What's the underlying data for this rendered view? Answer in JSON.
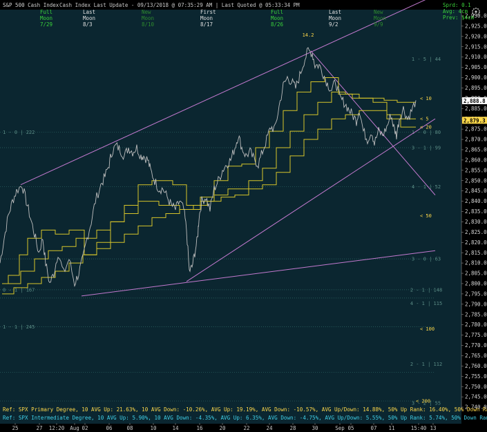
{
  "header": {
    "title": "S&P 500 Cash Index",
    "mid": "Cash Index  Last Update - 09/13/2018 @ 07:35:29 AM | Last Quoted @ 05:33:34 PM",
    "right": [
      {
        "text": "Sprd: 0.1",
        "color": "#3ad23a"
      },
      {
        "text": "Avg: 4cm",
        "color": "#3ad23a"
      },
      {
        "text": "Prev: $4cm",
        "color": "#3ad23a"
      }
    ],
    "moon_phases": [
      {
        "col": "Full",
        "row2": "Moon",
        "date": "7/29",
        "color": "#3ad23a"
      },
      {
        "col": "Last",
        "row2": "Moon",
        "date": "8/3",
        "color": "#e0e0e0"
      },
      {
        "col": "New",
        "row2": "Moon",
        "date": "8/10",
        "color": "#2e8a2e"
      },
      {
        "col": "First",
        "row2": "Moon",
        "date": "8/17",
        "color": "#e0e0e0"
      },
      {
        "col": "Full",
        "row2": "Moon",
        "date": "8/26",
        "color": "#3ad23a"
      },
      {
        "col": "Last",
        "row2": "Moon",
        "date": "9/2",
        "color": "#e0e0e0"
      },
      {
        "col": "New",
        "row2": "Moon",
        "date": "9/9",
        "color": "#2e8a2e"
      }
    ]
  },
  "chart_data": {
    "type": "line",
    "ylim": [
      2738,
      2933
    ],
    "yticks": [
      2740,
      2745,
      2750,
      2755,
      2760,
      2765,
      2770,
      2775,
      2780,
      2785,
      2790,
      2795,
      2800,
      2805,
      2810,
      2815,
      2820,
      2825,
      2830,
      2835,
      2840,
      2845,
      2850,
      2855,
      2860,
      2865,
      2870,
      2875,
      2880,
      2885,
      2890,
      2895,
      2900,
      2905,
      2910,
      2915,
      2920,
      2925,
      2930
    ],
    "xlim": [
      0,
      630
    ],
    "xticks": [
      {
        "x": 22,
        "label": "25"
      },
      {
        "x": 57,
        "label": "27"
      },
      {
        "x": 82,
        "label": "12:20"
      },
      {
        "x": 108,
        "label": "Aug"
      },
      {
        "x": 123,
        "label": "02"
      },
      {
        "x": 158,
        "label": "06"
      },
      {
        "x": 188,
        "label": "08"
      },
      {
        "x": 222,
        "label": "10"
      },
      {
        "x": 254,
        "label": "14"
      },
      {
        "x": 289,
        "label": "16"
      },
      {
        "x": 322,
        "label": "20"
      },
      {
        "x": 357,
        "label": "22"
      },
      {
        "x": 390,
        "label": "24"
      },
      {
        "x": 424,
        "label": "28"
      },
      {
        "x": 456,
        "label": "30"
      },
      {
        "x": 492,
        "label": "Sep"
      },
      {
        "x": 508,
        "label": "05"
      },
      {
        "x": 541,
        "label": "07"
      },
      {
        "x": 567,
        "label": "11"
      },
      {
        "x": 606,
        "label": "15:40"
      },
      {
        "x": 627,
        "label": "13"
      }
    ],
    "price_path": [
      [
        0,
        2810
      ],
      [
        6,
        2822
      ],
      [
        12,
        2833
      ],
      [
        18,
        2840
      ],
      [
        24,
        2845
      ],
      [
        32,
        2848
      ],
      [
        38,
        2840
      ],
      [
        44,
        2832
      ],
      [
        50,
        2824
      ],
      [
        56,
        2815
      ],
      [
        62,
        2822
      ],
      [
        66,
        2810
      ],
      [
        72,
        2800
      ],
      [
        78,
        2805
      ],
      [
        84,
        2815
      ],
      [
        92,
        2805
      ],
      [
        100,
        2812
      ],
      [
        108,
        2800
      ],
      [
        114,
        2805
      ],
      [
        120,
        2812
      ],
      [
        126,
        2822
      ],
      [
        132,
        2830
      ],
      [
        138,
        2840
      ],
      [
        146,
        2848
      ],
      [
        152,
        2852
      ],
      [
        158,
        2858
      ],
      [
        162,
        2864
      ],
      [
        168,
        2867
      ],
      [
        174,
        2865
      ],
      [
        180,
        2862
      ],
      [
        186,
        2866
      ],
      [
        192,
        2864
      ],
      [
        198,
        2866
      ],
      [
        204,
        2862
      ],
      [
        208,
        2862
      ],
      [
        214,
        2860
      ],
      [
        218,
        2855
      ],
      [
        224,
        2850
      ],
      [
        230,
        2846
      ],
      [
        236,
        2846
      ],
      [
        242,
        2842
      ],
      [
        248,
        2838
      ],
      [
        254,
        2836
      ],
      [
        260,
        2840
      ],
      [
        266,
        2836
      ],
      [
        270,
        2826
      ],
      [
        274,
        2806
      ],
      [
        278,
        2808
      ],
      [
        282,
        2815
      ],
      [
        286,
        2822
      ],
      [
        288,
        2832
      ],
      [
        292,
        2840
      ],
      [
        298,
        2842
      ],
      [
        304,
        2836
      ],
      [
        310,
        2846
      ],
      [
        316,
        2850
      ],
      [
        322,
        2855
      ],
      [
        328,
        2858
      ],
      [
        334,
        2860
      ],
      [
        340,
        2866
      ],
      [
        345,
        2872
      ],
      [
        350,
        2866
      ],
      [
        356,
        2862
      ],
      [
        362,
        2864
      ],
      [
        368,
        2860
      ],
      [
        374,
        2858
      ],
      [
        380,
        2864
      ],
      [
        386,
        2870
      ],
      [
        392,
        2876
      ],
      [
        398,
        2875
      ],
      [
        404,
        2886
      ],
      [
        410,
        2896
      ],
      [
        416,
        2900
      ],
      [
        422,
        2898
      ],
      [
        428,
        2895
      ],
      [
        434,
        2901
      ],
      [
        440,
        2908
      ],
      [
        446,
        2913
      ],
      [
        452,
        2912
      ],
      [
        456,
        2906
      ],
      [
        462,
        2906
      ],
      [
        468,
        2902
      ],
      [
        474,
        2897
      ],
      [
        480,
        2894
      ],
      [
        486,
        2898
      ],
      [
        492,
        2890
      ],
      [
        498,
        2888
      ],
      [
        504,
        2885
      ],
      [
        510,
        2882
      ],
      [
        516,
        2879
      ],
      [
        520,
        2885
      ],
      [
        526,
        2874
      ],
      [
        532,
        2870
      ],
      [
        538,
        2874
      ],
      [
        542,
        2868
      ],
      [
        548,
        2874
      ],
      [
        554,
        2872
      ],
      [
        560,
        2876
      ],
      [
        566,
        2882
      ],
      [
        570,
        2876
      ],
      [
        574,
        2872
      ],
      [
        578,
        2880
      ],
      [
        584,
        2885
      ],
      [
        590,
        2880
      ],
      [
        596,
        2884
      ],
      [
        602,
        2889
      ]
    ],
    "ma_lines": [
      [
        [
          3,
          2800
        ],
        [
          12,
          2800
        ],
        [
          12,
          2804
        ],
        [
          28,
          2804
        ],
        [
          28,
          2814
        ],
        [
          40,
          2814
        ],
        [
          40,
          2822
        ],
        [
          60,
          2822
        ],
        [
          60,
          2826
        ],
        [
          80,
          2826
        ],
        [
          80,
          2824
        ],
        [
          100,
          2824
        ],
        [
          100,
          2826
        ],
        [
          122,
          2826
        ],
        [
          122,
          2814
        ],
        [
          140,
          2814
        ],
        [
          140,
          2820
        ],
        [
          160,
          2820
        ],
        [
          160,
          2830
        ],
        [
          180,
          2830
        ],
        [
          180,
          2838
        ],
        [
          200,
          2838
        ],
        [
          200,
          2848
        ],
        [
          220,
          2848
        ],
        [
          220,
          2850
        ],
        [
          250,
          2850
        ],
        [
          250,
          2848
        ],
        [
          270,
          2848
        ],
        [
          270,
          2838
        ],
        [
          290,
          2838
        ],
        [
          290,
          2842
        ],
        [
          310,
          2842
        ],
        [
          310,
          2850
        ],
        [
          330,
          2850
        ],
        [
          330,
          2857
        ],
        [
          350,
          2857
        ],
        [
          350,
          2858
        ],
        [
          370,
          2858
        ],
        [
          370,
          2866
        ],
        [
          390,
          2866
        ],
        [
          390,
          2874
        ],
        [
          410,
          2874
        ],
        [
          410,
          2884
        ],
        [
          430,
          2884
        ],
        [
          430,
          2893
        ],
        [
          450,
          2893
        ],
        [
          450,
          2898
        ],
        [
          470,
          2898
        ],
        [
          470,
          2900
        ],
        [
          490,
          2900
        ],
        [
          490,
          2892
        ],
        [
          510,
          2892
        ],
        [
          510,
          2890
        ],
        [
          530,
          2890
        ],
        [
          530,
          2890
        ],
        [
          556,
          2890
        ],
        [
          556,
          2889
        ],
        [
          575,
          2889
        ],
        [
          575,
          2888
        ],
        [
          602,
          2888
        ]
      ],
      [
        [
          3,
          2800
        ],
        [
          30,
          2800
        ],
        [
          30,
          2806
        ],
        [
          50,
          2806
        ],
        [
          50,
          2812
        ],
        [
          70,
          2812
        ],
        [
          70,
          2816
        ],
        [
          90,
          2816
        ],
        [
          90,
          2818
        ],
        [
          110,
          2818
        ],
        [
          110,
          2822
        ],
        [
          140,
          2822
        ],
        [
          140,
          2826
        ],
        [
          160,
          2826
        ],
        [
          160,
          2830
        ],
        [
          180,
          2830
        ],
        [
          180,
          2834
        ],
        [
          200,
          2834
        ],
        [
          200,
          2840
        ],
        [
          230,
          2840
        ],
        [
          230,
          2838
        ],
        [
          260,
          2838
        ],
        [
          260,
          2836
        ],
        [
          290,
          2836
        ],
        [
          290,
          2840
        ],
        [
          310,
          2840
        ],
        [
          310,
          2843
        ],
        [
          330,
          2843
        ],
        [
          330,
          2846
        ],
        [
          360,
          2846
        ],
        [
          360,
          2850
        ],
        [
          380,
          2850
        ],
        [
          380,
          2856
        ],
        [
          400,
          2856
        ],
        [
          400,
          2866
        ],
        [
          420,
          2866
        ],
        [
          420,
          2874
        ],
        [
          440,
          2874
        ],
        [
          440,
          2882
        ],
        [
          460,
          2882
        ],
        [
          460,
          2888
        ],
        [
          480,
          2888
        ],
        [
          480,
          2893
        ],
        [
          500,
          2893
        ],
        [
          500,
          2892
        ],
        [
          520,
          2892
        ],
        [
          520,
          2890
        ],
        [
          540,
          2890
        ],
        [
          540,
          2888
        ],
        [
          560,
          2888
        ],
        [
          560,
          2882
        ],
        [
          580,
          2882
        ],
        [
          580,
          2880
        ],
        [
          602,
          2880
        ]
      ],
      [
        [
          3,
          2795
        ],
        [
          20,
          2795
        ],
        [
          20,
          2798
        ],
        [
          40,
          2798
        ],
        [
          40,
          2800
        ],
        [
          60,
          2800
        ],
        [
          60,
          2803
        ],
        [
          80,
          2803
        ],
        [
          80,
          2806
        ],
        [
          100,
          2806
        ],
        [
          100,
          2810
        ],
        [
          120,
          2810
        ],
        [
          120,
          2814
        ],
        [
          140,
          2814
        ],
        [
          140,
          2817
        ],
        [
          160,
          2817
        ],
        [
          160,
          2820
        ],
        [
          180,
          2820
        ],
        [
          180,
          2824
        ],
        [
          200,
          2824
        ],
        [
          200,
          2828
        ],
        [
          220,
          2828
        ],
        [
          220,
          2832
        ],
        [
          240,
          2832
        ],
        [
          240,
          2834
        ],
        [
          260,
          2834
        ],
        [
          260,
          2836
        ],
        [
          280,
          2836
        ],
        [
          280,
          2838
        ],
        [
          300,
          2838
        ],
        [
          300,
          2840
        ],
        [
          320,
          2840
        ],
        [
          320,
          2842
        ],
        [
          340,
          2842
        ],
        [
          340,
          2843
        ],
        [
          360,
          2843
        ],
        [
          360,
          2846
        ],
        [
          380,
          2846
        ],
        [
          380,
          2848
        ],
        [
          400,
          2848
        ],
        [
          400,
          2854
        ],
        [
          420,
          2854
        ],
        [
          420,
          2862
        ],
        [
          440,
          2862
        ],
        [
          440,
          2870
        ],
        [
          460,
          2870
        ],
        [
          460,
          2875
        ],
        [
          480,
          2875
        ],
        [
          480,
          2880
        ],
        [
          500,
          2880
        ],
        [
          500,
          2882
        ],
        [
          520,
          2882
        ],
        [
          520,
          2884
        ],
        [
          540,
          2884
        ],
        [
          540,
          2884
        ],
        [
          560,
          2884
        ],
        [
          560,
          2880
        ],
        [
          580,
          2880
        ],
        [
          580,
          2876
        ],
        [
          602,
          2876
        ]
      ]
    ],
    "trend_lines": [
      [
        [
          30,
          2848
        ],
        [
          630,
          2940
        ]
      ],
      [
        [
          450,
          2913
        ],
        [
          630,
          2843
        ]
      ],
      [
        [
          270,
          2801
        ],
        [
          630,
          2880
        ]
      ],
      [
        [
          118,
          2794
        ],
        [
          630,
          2816
        ]
      ]
    ],
    "level_lines": [
      2873.5,
      2866,
      2847,
      2812,
      2797,
      2793,
      2779,
      2757,
      2743
    ],
    "level_labels": [
      {
        "x": 617,
        "y": 2909,
        "text": "1 - 5 | 44"
      },
      {
        "x": 4,
        "y": 2873.5,
        "text": "1 - 0 | 222"
      },
      {
        "x": 617,
        "y": 2873.5,
        "text": "1 - 0 | 80"
      },
      {
        "x": 617,
        "y": 2866,
        "text": "3 - 1 | 99"
      },
      {
        "x": 617,
        "y": 2847,
        "text": "4 - 1 | 52"
      },
      {
        "x": 617,
        "y": 2812,
        "text": "3 - 0 | 63"
      },
      {
        "x": 4,
        "y": 2797,
        "text": "0 - 1 | 167"
      },
      {
        "x": 617,
        "y": 2797,
        "text": "2 - 1 | 148"
      },
      {
        "x": 617,
        "y": 2790.5,
        "text": "4 - 1 | 115"
      },
      {
        "x": 4,
        "y": 2779,
        "text": "1 - 1 | 245"
      },
      {
        "x": 617,
        "y": 2761,
        "text": "2 - 1 | 112"
      },
      {
        "x": 617,
        "y": 2742,
        "text": "3 - 2 | 55"
      }
    ],
    "markers": [
      {
        "x": 608,
        "y": 2890,
        "text": "< 10"
      },
      {
        "x": 608,
        "y": 2880,
        "text": "< 5"
      },
      {
        "x": 608,
        "y": 2876,
        "text": "< 20"
      },
      {
        "x": 608,
        "y": 2833,
        "text": "< 50"
      },
      {
        "x": 608,
        "y": 2778,
        "text": "< 100"
      },
      {
        "x": 602,
        "y": 2743,
        "text": "< 200"
      }
    ],
    "peak_label": {
      "x": 446,
      "y": 2920,
      "text": "14.2"
    },
    "price_tags": [
      {
        "y": 2888.8,
        "text": "2,888.8",
        "bg": "#ffffff",
        "fg": "#000"
      },
      {
        "y": 2879.3,
        "text": "2,879.3",
        "bg": "#ffd94a",
        "fg": "#000"
      }
    ],
    "refs": [
      {
        "text": "Ref: SPX Primary Degree, 10 AVG Up: 21.63%, 10 AVG Down: -10.26%, AVG Up: 19.19%, AVG Down: -10.57%, AVG Up/Down: 14.88%, 50%  Up Rank: 16.40%, 50% Down Rank: -9.84%, Maximum Up: 50.71%, Maximum Do"
      },
      {
        "text": "Ref: SPX Intermediate Degree, 10 AVG Up: 5.90%, 10 AVG Down: -4.35%, AVG Up: 6.35%, AVG Down: -4.75%, AVG Up/Down: 5.55%, 50%  Up Rank: 5.74%, 50% Down Rank: -3.07%, Maximum Up: 20.27%, Maximum Dc"
      }
    ]
  }
}
